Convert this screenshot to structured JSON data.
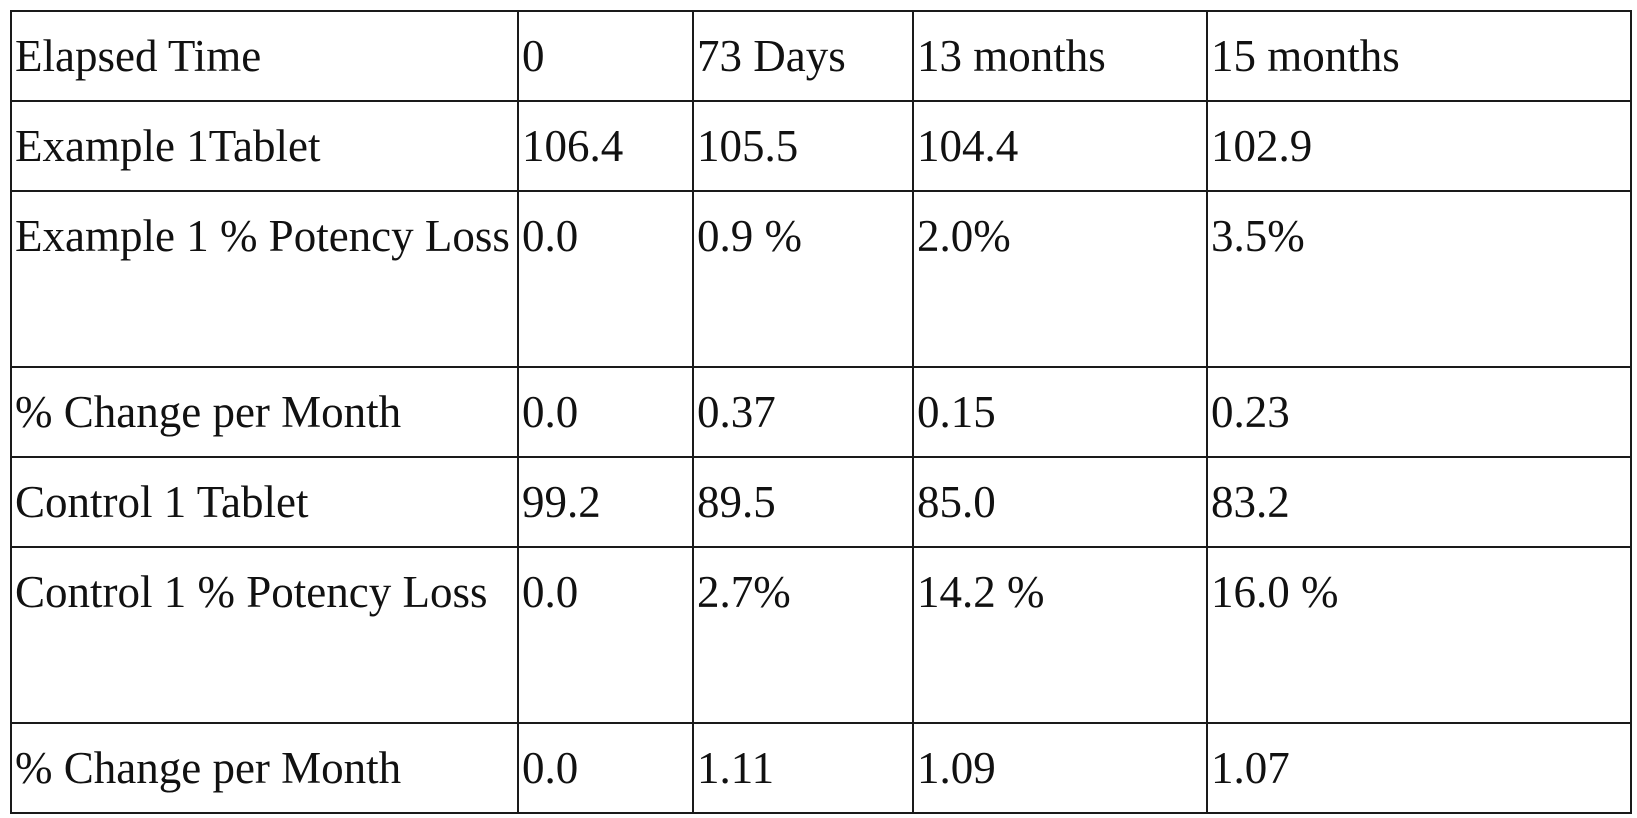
{
  "table": {
    "rows": [
      {
        "label": "Elapsed Time",
        "cells": [
          "0",
          "73 Days",
          "13 months",
          "15 months"
        ]
      },
      {
        "label": "Example 1Tablet",
        "cells": [
          "106.4",
          "105.5",
          "104.4",
          "102.9"
        ]
      },
      {
        "label": "Example 1 % Potency Loss",
        "cells": [
          "0.0",
          "0.9 %",
          "2.0%",
          "3.5%"
        ]
      },
      {
        "label": "% Change per Month",
        "cells": [
          "0.0",
          "0.37",
          "0.15",
          "0.23"
        ]
      },
      {
        "label": "Control 1 Tablet",
        "cells": [
          "99.2",
          "89.5",
          "85.0",
          "83.2"
        ]
      },
      {
        "label": "Control 1 % Potency Loss",
        "cells": [
          "0.0",
          "2.7%",
          "14.2 %",
          "16.0 %"
        ]
      },
      {
        "label": "% Change per Month",
        "cells": [
          "0.0",
          "1.11",
          "1.09",
          "1.07"
        ]
      }
    ]
  }
}
